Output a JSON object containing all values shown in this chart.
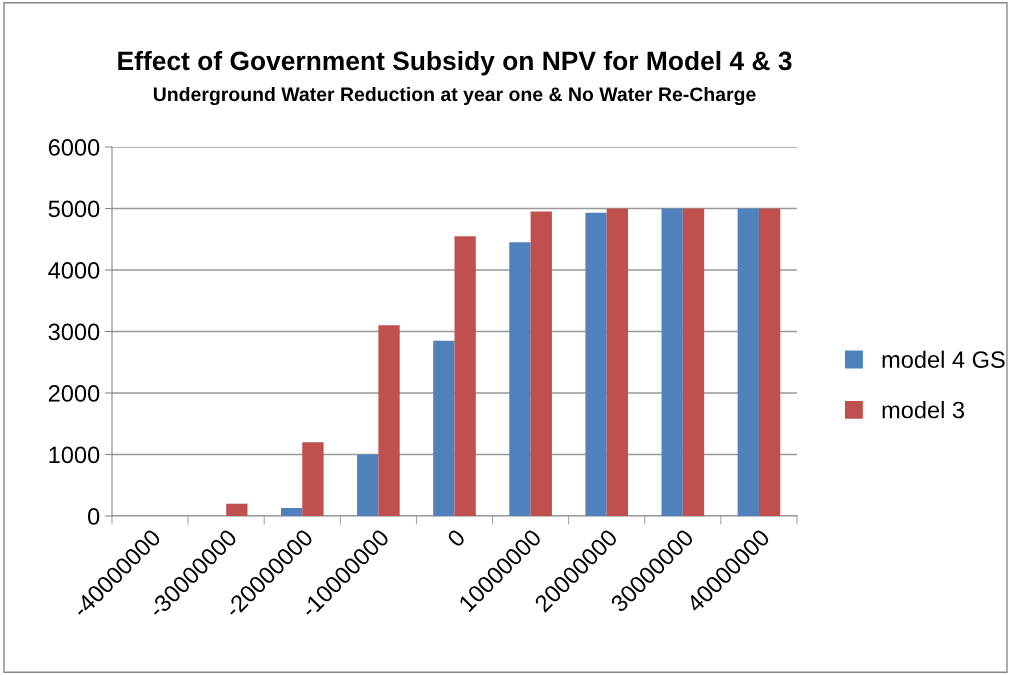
{
  "chart_data": {
    "type": "bar",
    "title": "Effect of Government Subsidy on NPV for Model 4 & 3",
    "subtitle": "Underground Water Reduction at year one & No Water Re-Charge",
    "categories": [
      "-40000000",
      "-30000000",
      "-20000000",
      "-10000000",
      "0",
      "10000000",
      "20000000",
      "30000000",
      "40000000"
    ],
    "series": [
      {
        "name": "model 4 GS",
        "color": "#4f81bd",
        "values": [
          0,
          0,
          130,
          1000,
          2850,
          4450,
          4930,
          5000,
          5000
        ]
      },
      {
        "name": "model 3",
        "color": "#c0504d",
        "values": [
          0,
          200,
          1200,
          3100,
          4550,
          4950,
          5000,
          5000,
          5000
        ]
      }
    ],
    "ylim": [
      0,
      6000
    ],
    "yticks": [
      0,
      1000,
      2000,
      3000,
      4000,
      5000,
      6000
    ],
    "grid": "y",
    "legend": "right"
  }
}
